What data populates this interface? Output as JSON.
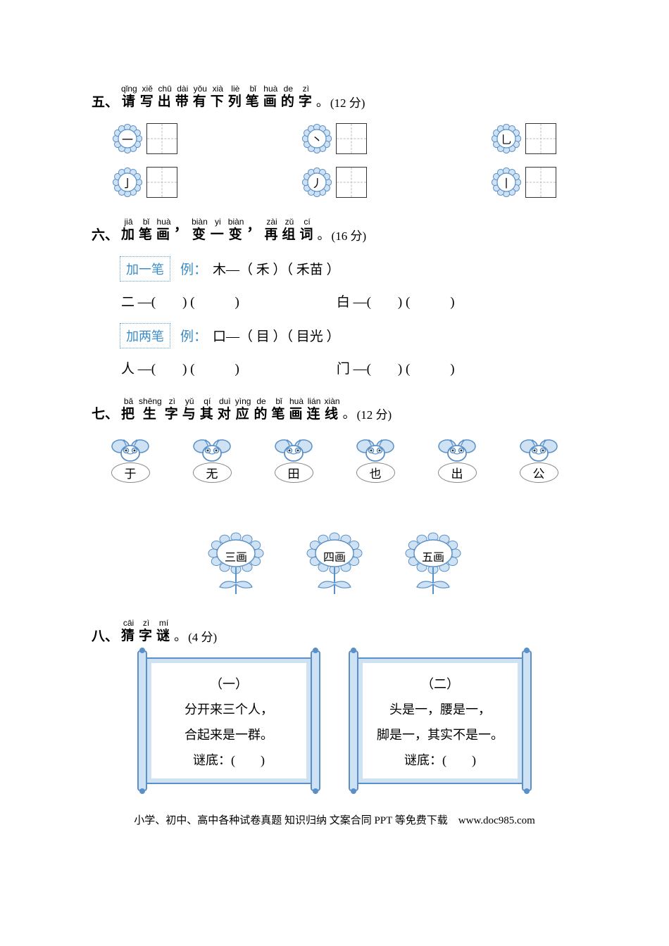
{
  "colors": {
    "flower_fill": "#cfe2f3",
    "flower_stroke": "#5a90c8",
    "accent": "#3a8cc7",
    "text": "#000000"
  },
  "section5": {
    "number": "五、",
    "pinyin": [
      "qǐng",
      "xiě",
      "chū",
      "dài",
      "yǒu",
      "xià",
      "liè",
      "bǐ",
      "huà",
      "de",
      "zì"
    ],
    "hanzi": [
      "请",
      "写",
      "出",
      "带",
      "有",
      "下",
      "列",
      "笔",
      "画",
      "的",
      "字"
    ],
    "tail": "。",
    "points": "(12 分)",
    "strokes": [
      "一",
      "丶",
      "乚",
      "亅",
      "丿",
      "丨"
    ]
  },
  "section6": {
    "number": "六、",
    "pinyin": [
      "jiā",
      "bǐ",
      "huà",
      "",
      "biàn",
      "yi",
      "biàn",
      "",
      "zài",
      "zǔ",
      "cí"
    ],
    "hanzi": [
      "加",
      "笔",
      "画",
      "，",
      "变",
      "一",
      "变",
      "，",
      "再",
      "组",
      "词"
    ],
    "tail": "。",
    "points": "(16 分)",
    "tag1": "加一笔",
    "ex_label": "例：",
    "ex1": "木—（ 禾 ）（ 禾苗 ）",
    "row1a": "二 —(　　) (　　　)",
    "row1b": "白 —(　　) (　　　)",
    "tag2": "加两笔",
    "ex2": "口—（ 目 ）（ 目光 ）",
    "row2a": "人 —(　　) (　　　)",
    "row2b": "门 —(　　) (　　　)"
  },
  "section7": {
    "number": "七、",
    "pinyin": [
      "bǎ",
      "shēng",
      "zì",
      "yǔ",
      "qí",
      "duì",
      "yìng",
      "de",
      "bǐ",
      "huà",
      "lián",
      "xiàn"
    ],
    "hanzi": [
      "把",
      "生",
      "字",
      "与",
      "其",
      "对",
      "应",
      "的",
      "笔",
      "画",
      "连",
      "线"
    ],
    "tail": "。",
    "points": "(12 分)",
    "bees": [
      "于",
      "无",
      "田",
      "也",
      "出",
      "公"
    ],
    "flowers": [
      "三画",
      "四画",
      "五画"
    ]
  },
  "section8": {
    "number": "八、",
    "pinyin": [
      "cāi",
      "zì",
      "mí"
    ],
    "hanzi": [
      "猜",
      "字",
      "谜"
    ],
    "tail": "。",
    "points": "(4 分)",
    "scroll1": {
      "title": "（一）",
      "line1": "分开来三个人，",
      "line2": "合起来是一群。",
      "answer": "谜底：(　　)"
    },
    "scroll2": {
      "title": "（二）",
      "line1": "头是一，腰是一，",
      "line2": "脚是一，其实不是一。",
      "answer": "谜底：(　　)"
    }
  },
  "footer": "小学、初中、高中各种试卷真题 知识归纳 文案合同 PPT 等免费下载　www.doc985.com"
}
